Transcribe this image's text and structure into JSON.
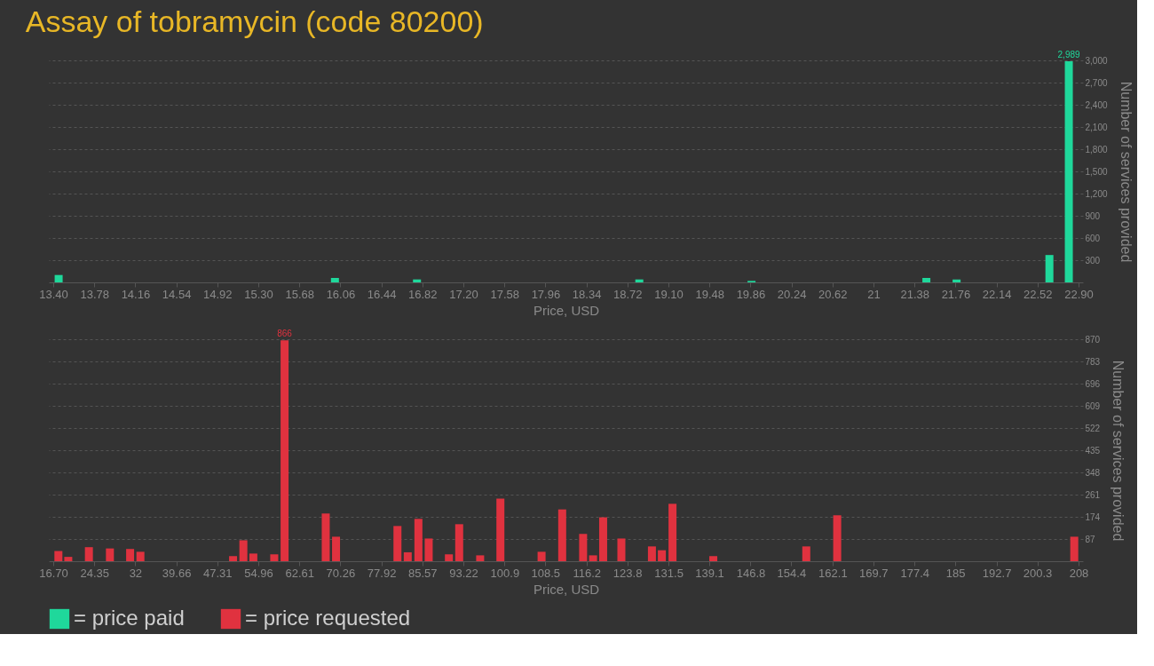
{
  "chart_data": [
    {
      "type": "bar",
      "title": "Assay of tobramycin (code 80200)",
      "xlabel": "Price, USD",
      "ylabel": "Number of services provided",
      "legend": "bottom left",
      "grid": "y",
      "x": [
        13.45,
        16.01,
        16.77,
        18.83,
        19.87,
        21.49,
        21.77,
        22.63,
        22.81
      ],
      "series": [
        {
          "name": "= price paid",
          "color": "#1fd89b",
          "values": [
            100,
            60,
            40,
            40,
            20,
            60,
            40,
            370,
            2989
          ],
          "value_labels": [
            null,
            null,
            null,
            null,
            null,
            null,
            null,
            null,
            "2,989"
          ]
        }
      ],
      "xlim": [
        13.4,
        22.9
      ],
      "xticks": [
        {
          "value": 13.4,
          "label": "13.40"
        },
        13.78,
        14.16,
        14.54,
        14.92,
        {
          "value": 15.3,
          "label": "15.30"
        },
        15.68,
        16.06,
        16.44,
        16.82,
        {
          "value": 17.2,
          "label": "17.20"
        },
        17.58,
        17.96,
        18.34,
        18.72,
        {
          "value": 19.1,
          "label": "19.10"
        },
        19.48,
        19.86,
        20.24,
        20.62,
        21,
        21.38,
        21.76,
        22.14,
        22.52,
        {
          "value": 22.9,
          "label": "22.90"
        }
      ],
      "ylim": [
        0,
        3000
      ],
      "yticks": [
        300,
        600,
        900,
        {
          "value": 1200,
          "label": "1,200"
        },
        {
          "value": 1500,
          "label": "1,500"
        },
        {
          "value": 1800,
          "label": "1,800"
        },
        {
          "value": 2100,
          "label": "2,100"
        },
        {
          "value": 2400,
          "label": "2,400"
        },
        {
          "value": 2700,
          "label": "2,700"
        },
        {
          "value": 3000,
          "label": "3,000"
        }
      ]
    },
    {
      "type": "bar",
      "xlabel": "Price, USD",
      "ylabel": "Number of services provided",
      "legend": "bottom left",
      "grid": "y",
      "x": [
        17.66,
        19.5,
        23.35,
        27.27,
        31.04,
        32.96,
        50.25,
        52.17,
        54.03,
        57.93,
        59.86,
        67.54,
        69.46,
        80.92,
        82.84,
        84.83,
        86.75,
        90.52,
        92.44,
        96.35,
        100.13,
        107.81,
        111.66,
        115.56,
        117.42,
        119.3,
        122.7,
        128.4,
        130.25,
        132.24,
        139.85,
        157.2,
        162.97,
        207.2
      ],
      "series": [
        {
          "name": "= price requested",
          "color": "#e0323f",
          "values": [
            40,
            17,
            55,
            50,
            48,
            37,
            20,
            82,
            30,
            27,
            866,
            187,
            96,
            138,
            35,
            166,
            89,
            27,
            145,
            23,
            245,
            37,
            203,
            107,
            23,
            172,
            89,
            58,
            43,
            225,
            20,
            58,
            180,
            96
          ],
          "value_labels": [
            null,
            null,
            null,
            null,
            null,
            null,
            null,
            null,
            null,
            null,
            "866",
            null,
            null,
            null,
            null,
            null,
            null,
            null,
            null,
            null,
            null,
            null,
            null,
            null,
            null,
            null,
            null,
            null,
            null,
            null,
            null,
            null,
            null,
            null
          ]
        }
      ],
      "xlim": [
        16.7,
        208
      ],
      "xticks": [
        {
          "value": 16.7,
          "label": "16.70"
        },
        24.35,
        {
          "value": 32.0,
          "label": "32"
        },
        39.66,
        47.31,
        54.96,
        62.61,
        70.26,
        77.92,
        85.57,
        93.22,
        100.9,
        108.5,
        116.2,
        123.8,
        131.5,
        139.1,
        146.8,
        154.4,
        162.1,
        169.7,
        177.4,
        185,
        192.7,
        200.3,
        208
      ],
      "ylim": [
        0,
        870
      ],
      "yticks": [
        87,
        174,
        261,
        348,
        435,
        522,
        609,
        696,
        783,
        870
      ]
    }
  ]
}
